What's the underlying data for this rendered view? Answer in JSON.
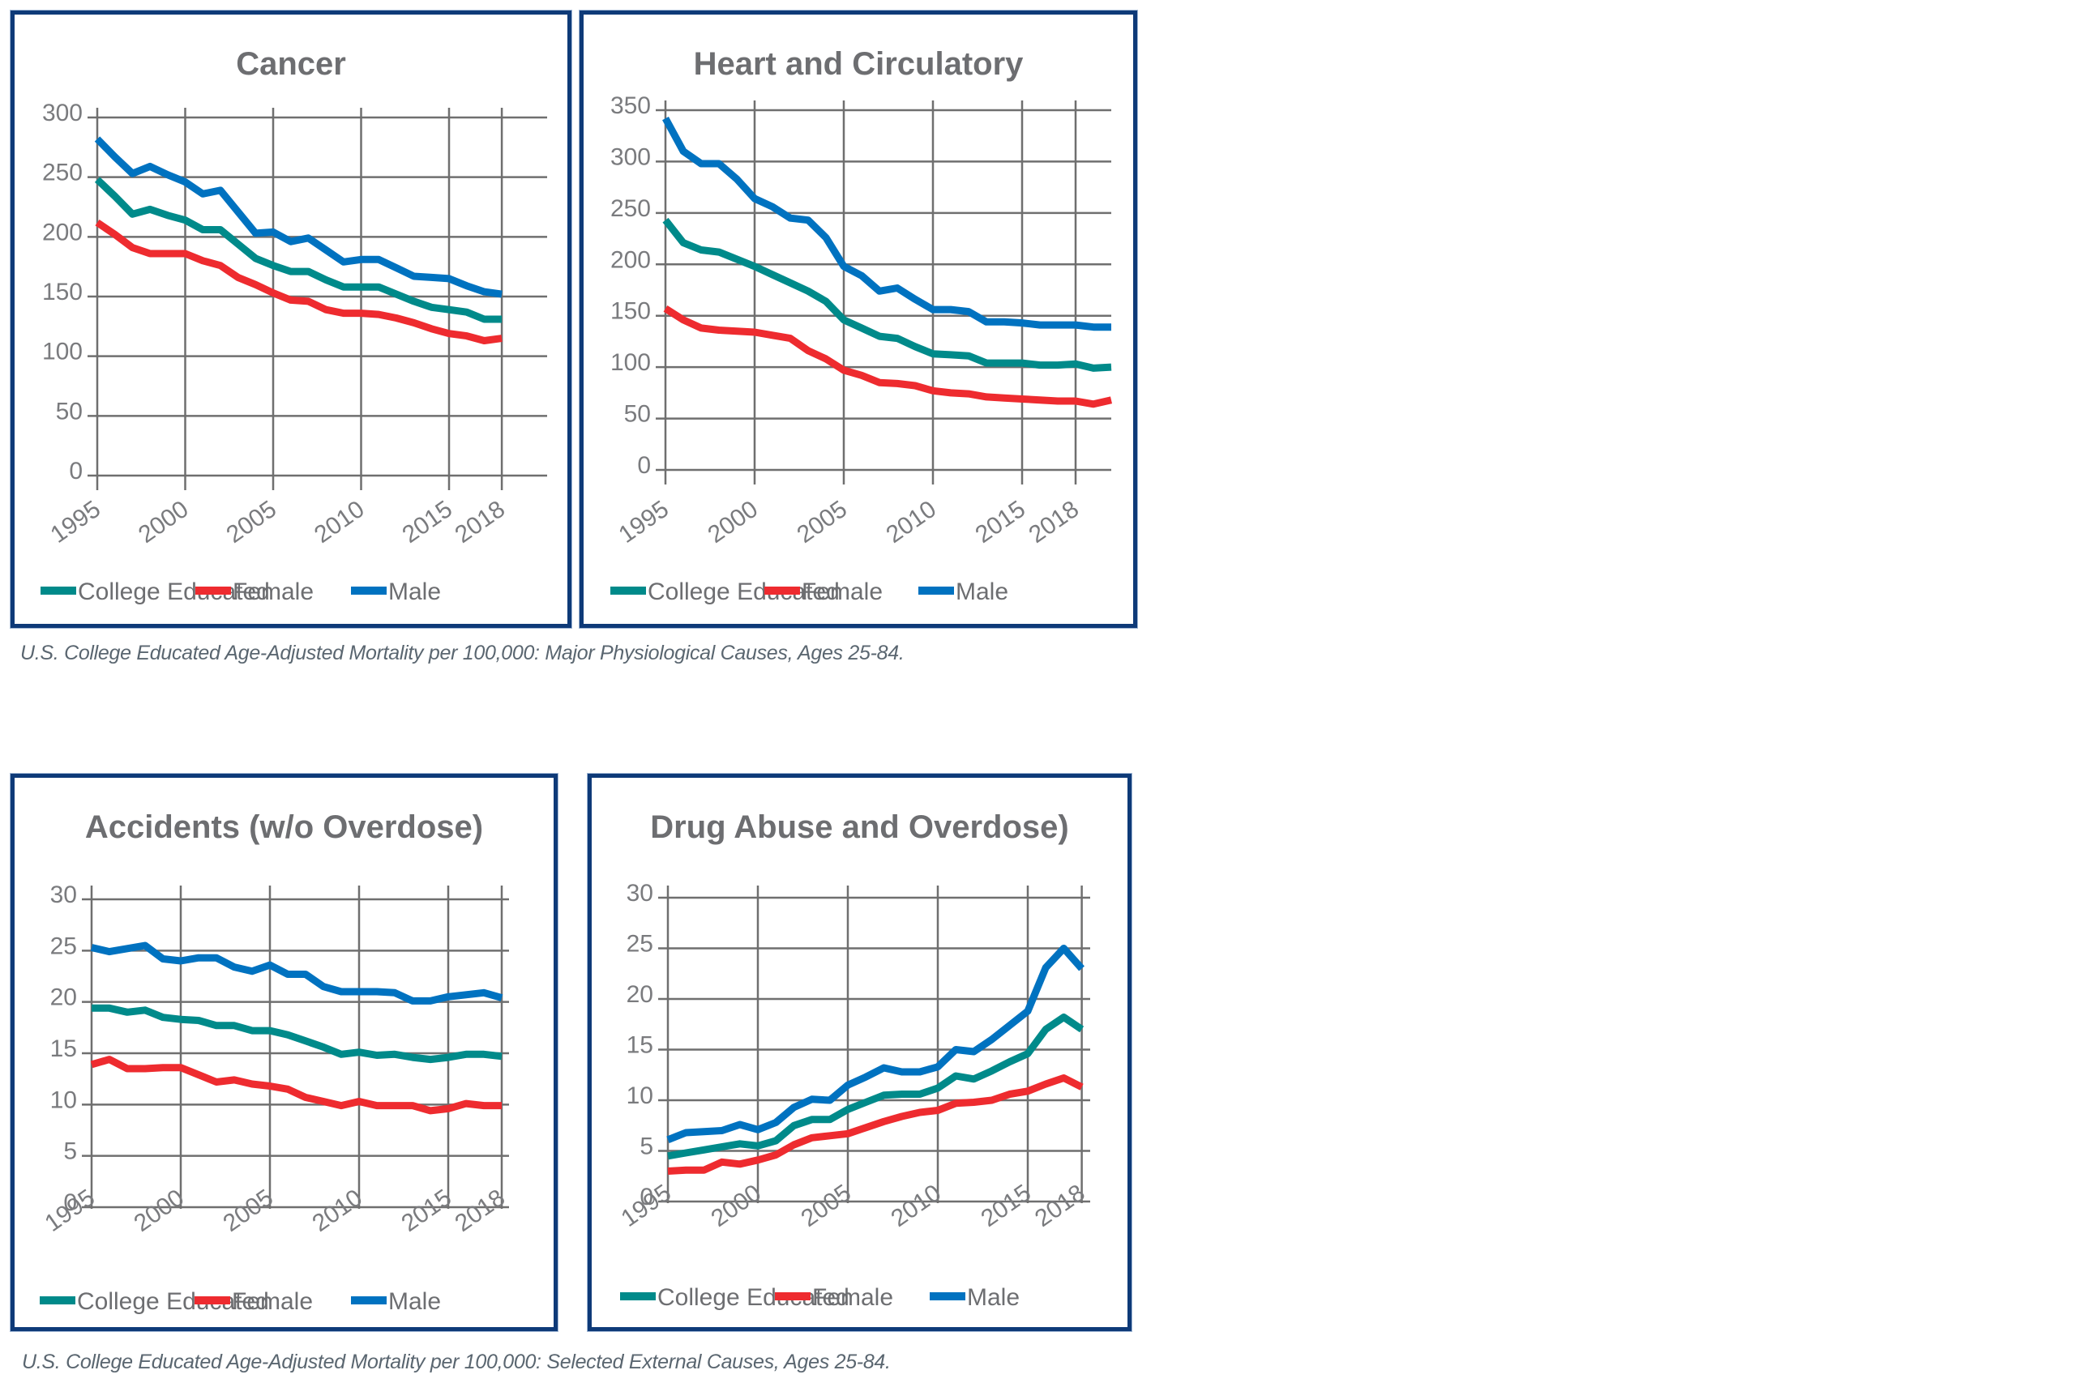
{
  "colors": {
    "college_educated": "#008a8a",
    "female": "#ee2b2f",
    "male": "#0072c0",
    "border": "#0e3a78"
  },
  "legend": [
    "College Educated",
    "Female",
    "Male"
  ],
  "captions": {
    "top": "U.S. College Educated Age-Adjusted Mortality per 100,000: Major Physiological Causes, Ages 25-84.",
    "bottom": "U.S. College Educated Age-Adjusted Mortality per 100,000: Selected External Causes, Ages 25-84."
  },
  "chart_data": [
    {
      "type": "line",
      "title": "Cancer",
      "xlabel": "",
      "ylabel": "",
      "x_ticks": [
        "1995",
        "2000",
        "2005",
        "2010",
        "2015",
        "2018"
      ],
      "y_ticks": [
        "0",
        "50",
        "100",
        "150",
        "200",
        "250",
        "300"
      ],
      "ylim": [
        0,
        300
      ],
      "grid": true,
      "legend_position": "bottom",
      "x": [
        1995,
        1996,
        1997,
        1998,
        1999,
        2000,
        2001,
        2002,
        2003,
        2004,
        2005,
        2006,
        2007,
        2008,
        2009,
        2010,
        2011,
        2012,
        2013,
        2014,
        2015,
        2016,
        2017,
        2018
      ],
      "series": [
        {
          "name": "College Educated",
          "values": [
            248,
            234,
            219,
            223,
            218,
            214,
            206,
            206,
            194,
            182,
            176,
            171,
            171,
            164,
            158,
            158,
            158,
            152,
            146,
            141,
            139,
            137,
            131,
            131
          ]
        },
        {
          "name": "Female",
          "values": [
            212,
            202,
            191,
            186,
            186,
            186,
            180,
            176,
            166,
            160,
            153,
            147,
            146,
            139,
            136,
            136,
            135,
            132,
            128,
            123,
            119,
            117,
            113,
            115
          ]
        },
        {
          "name": "Male",
          "values": [
            282,
            267,
            253,
            259,
            252,
            246,
            236,
            239,
            221,
            203,
            204,
            196,
            199,
            189,
            179,
            181,
            181,
            174,
            167,
            166,
            165,
            159,
            154,
            152
          ]
        }
      ]
    },
    {
      "type": "line",
      "title": "Heart and Circulatory",
      "xlabel": "",
      "ylabel": "",
      "x_ticks": [
        "1995",
        "2000",
        "2005",
        "2010",
        "2015",
        "2018"
      ],
      "y_ticks": [
        "0",
        "50",
        "100",
        "150",
        "200",
        "250",
        "300",
        "350"
      ],
      "ylim": [
        0,
        350
      ],
      "grid": true,
      "legend_position": "bottom",
      "x": [
        1995,
        1996,
        1997,
        1998,
        1999,
        2000,
        2001,
        2002,
        2003,
        2004,
        2005,
        2006,
        2007,
        2008,
        2009,
        2010,
        2011,
        2012,
        2013,
        2014,
        2015,
        2016,
        2017,
        2018,
        2019,
        2020
      ],
      "series": [
        {
          "name": "College Educated",
          "values": [
            243,
            221,
            214,
            212,
            205,
            198,
            190,
            182,
            174,
            164,
            146,
            138,
            130,
            128,
            120,
            113,
            112,
            111,
            104,
            104,
            104,
            102,
            102,
            103,
            99,
            100
          ]
        },
        {
          "name": "Female",
          "values": [
            157,
            146,
            138,
            136,
            135,
            134,
            131,
            128,
            116,
            108,
            97,
            92,
            85,
            84,
            82,
            77,
            75,
            74,
            71,
            70,
            69,
            68,
            67,
            67,
            64,
            68
          ]
        },
        {
          "name": "Male",
          "values": [
            342,
            310,
            298,
            298,
            283,
            264,
            256,
            245,
            243,
            226,
            198,
            189,
            174,
            177,
            166,
            156,
            156,
            154,
            144,
            144,
            143,
            141,
            141,
            141,
            139,
            139
          ]
        }
      ]
    },
    {
      "type": "line",
      "title": "Accidents (w/o Overdose)",
      "xlabel": "",
      "ylabel": "",
      "x_ticks": [
        "1995",
        "2000",
        "2005",
        "2010",
        "2015",
        "2018"
      ],
      "y_ticks": [
        "0",
        "5",
        "10",
        "15",
        "20",
        "25",
        "30"
      ],
      "ylim": [
        0,
        30
      ],
      "grid": true,
      "legend_position": "bottom",
      "x": [
        1995,
        1996,
        1997,
        1998,
        1999,
        2000,
        2001,
        2002,
        2003,
        2004,
        2005,
        2006,
        2007,
        2008,
        2009,
        2010,
        2011,
        2012,
        2013,
        2014,
        2015,
        2016,
        2017,
        2018
      ],
      "series": [
        {
          "name": "College Educated",
          "values": [
            19.4,
            19.4,
            19.0,
            19.2,
            18.5,
            18.3,
            18.2,
            17.7,
            17.7,
            17.2,
            17.2,
            16.8,
            16.2,
            15.6,
            14.9,
            15.1,
            14.8,
            14.9,
            14.6,
            14.4,
            14.6,
            14.9,
            14.9,
            14.7
          ]
        },
        {
          "name": "Female",
          "values": [
            13.9,
            14.4,
            13.5,
            13.5,
            13.6,
            13.6,
            12.9,
            12.2,
            12.4,
            12.0,
            11.8,
            11.5,
            10.7,
            10.3,
            9.9,
            10.3,
            9.9,
            9.9,
            9.9,
            9.4,
            9.6,
            10.1,
            9.9,
            9.9
          ]
        },
        {
          "name": "Male",
          "values": [
            25.3,
            24.9,
            25.2,
            25.5,
            24.2,
            24.0,
            24.3,
            24.3,
            23.4,
            23.0,
            23.6,
            22.7,
            22.7,
            21.5,
            21.0,
            21.0,
            21.0,
            20.9,
            20.1,
            20.1,
            20.5,
            20.7,
            20.9,
            20.4
          ]
        }
      ]
    },
    {
      "type": "line",
      "title": "Drug Abuse and Overdose)",
      "xlabel": "",
      "ylabel": "",
      "x_ticks": [
        "1995",
        "2000",
        "2005",
        "2010",
        "2015",
        "2018"
      ],
      "y_ticks": [
        "0",
        "5",
        "10",
        "15",
        "20",
        "25",
        "30"
      ],
      "ylim": [
        0,
        30
      ],
      "grid": true,
      "legend_position": "bottom",
      "x": [
        1995,
        1996,
        1997,
        1998,
        1999,
        2000,
        2001,
        2002,
        2003,
        2004,
        2005,
        2006,
        2007,
        2008,
        2009,
        2010,
        2011,
        2012,
        2013,
        2014,
        2015,
        2016,
        2017,
        2018
      ],
      "series": [
        {
          "name": "College Educated",
          "values": [
            4.5,
            4.8,
            5.1,
            5.4,
            5.7,
            5.5,
            6.0,
            7.5,
            8.1,
            8.1,
            9.1,
            9.8,
            10.5,
            10.6,
            10.6,
            11.2,
            12.4,
            12.1,
            12.9,
            13.8,
            14.6,
            17.0,
            18.2,
            17.0
          ]
        },
        {
          "name": "Female",
          "values": [
            3.0,
            3.1,
            3.1,
            3.9,
            3.7,
            4.1,
            4.6,
            5.6,
            6.3,
            6.5,
            6.7,
            7.3,
            7.9,
            8.4,
            8.8,
            9.0,
            9.7,
            9.8,
            10.0,
            10.6,
            10.9,
            11.6,
            12.2,
            11.3
          ]
        },
        {
          "name": "Male",
          "values": [
            6.1,
            6.8,
            6.9,
            7.0,
            7.6,
            7.1,
            7.8,
            9.3,
            10.1,
            10.0,
            11.5,
            12.3,
            13.2,
            12.8,
            12.8,
            13.3,
            15.0,
            14.8,
            16.0,
            17.4,
            18.8,
            23.1,
            25.0,
            23.0
          ]
        }
      ]
    }
  ]
}
